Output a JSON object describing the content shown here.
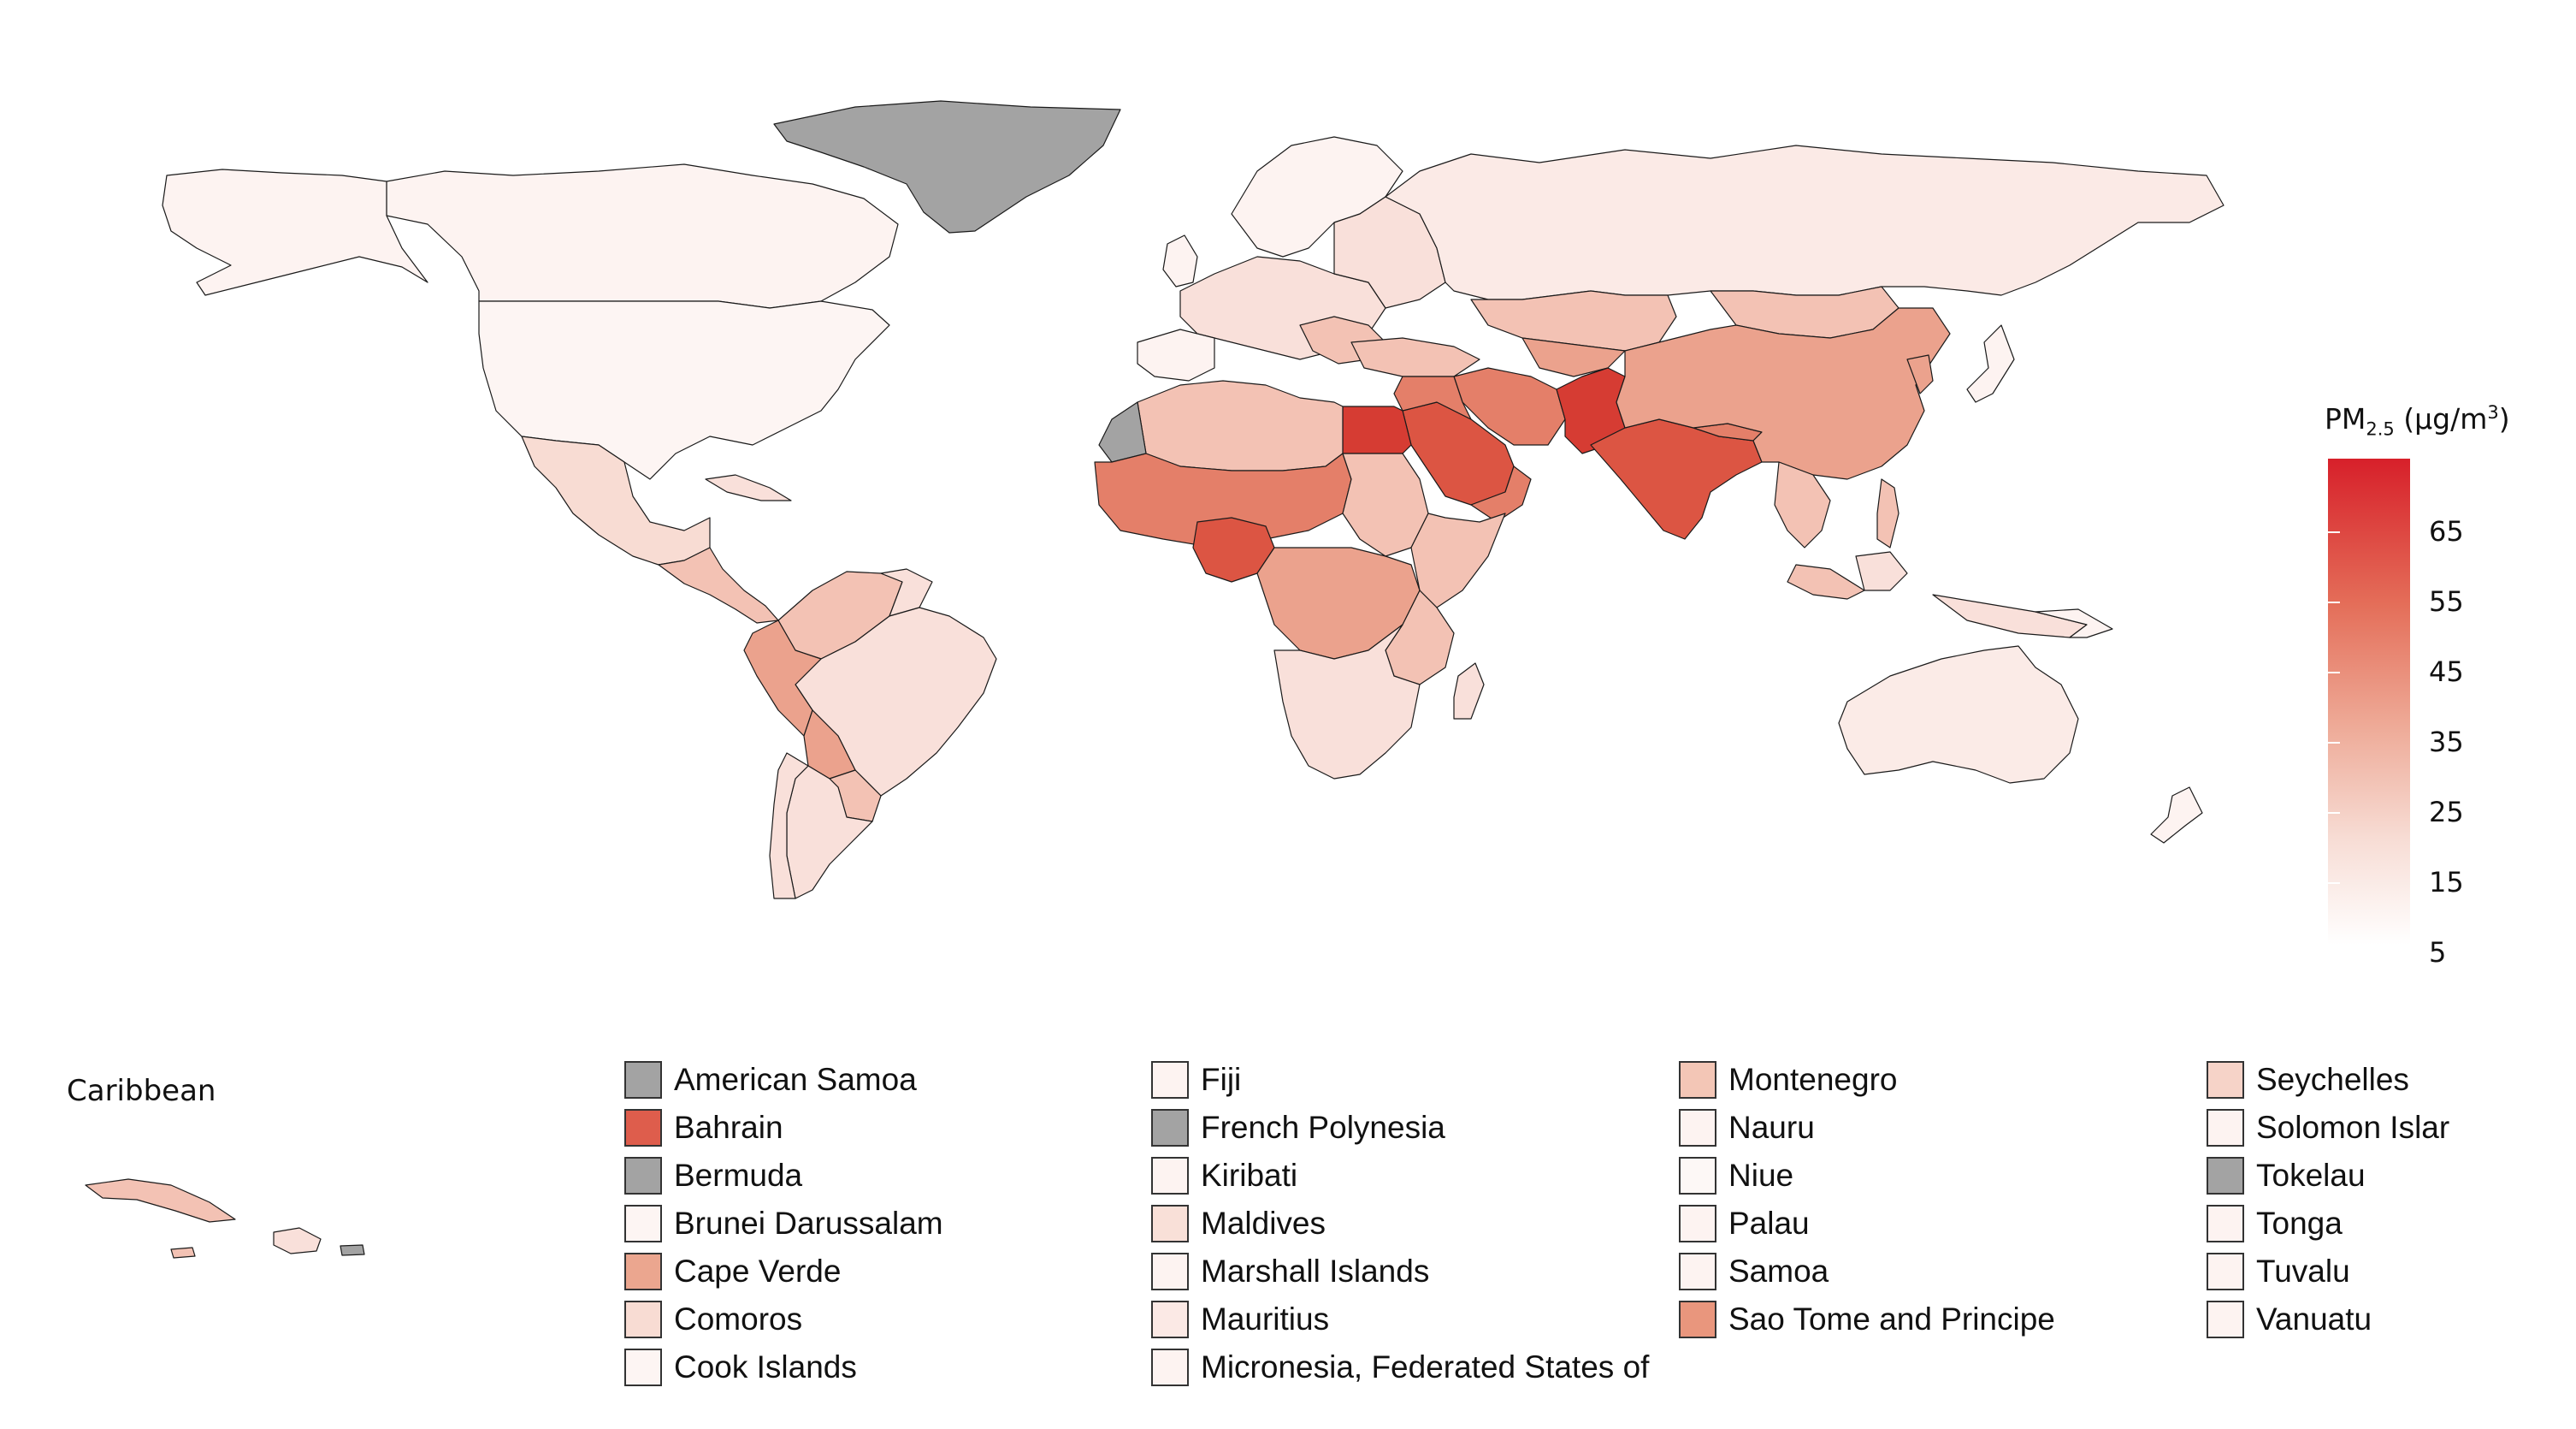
{
  "legend_title": {
    "main": "PM",
    "subscript": "2.5",
    "unit_open": " (µg/m",
    "superscript": "3",
    "unit_close": ")"
  },
  "colorbar": {
    "ticks": [
      "65",
      "55",
      "45",
      "35",
      "25",
      "15",
      "5"
    ],
    "min": 5,
    "max": 72,
    "colors": [
      "#ffffff",
      "#d7202a"
    ]
  },
  "inset_title": "Caribbean",
  "colors": {
    "no_data": "#a3a3a3",
    "lowest": "#fdf3f1",
    "low": "#f9e0da",
    "mid_low": "#f3c2b4",
    "mid": "#eba28d",
    "mid_high": "#e47f69",
    "high": "#dc5543",
    "highest": "#d63c33"
  },
  "small_states": [
    {
      "label": "American Samoa",
      "color": "#a3a3a3"
    },
    {
      "label": "Bahrain",
      "color": "#de5d4c"
    },
    {
      "label": "Bermuda",
      "color": "#a3a3a3"
    },
    {
      "label": "Brunei Darussalam",
      "color": "#fdf5f3"
    },
    {
      "label": "Cape Verde",
      "color": "#eba68f"
    },
    {
      "label": "Comoros",
      "color": "#f8dcd3"
    },
    {
      "label": "Cook Islands",
      "color": "#fdf5f3"
    },
    {
      "label": "Fiji",
      "color": "#fdf3f1"
    },
    {
      "label": "French Polynesia",
      "color": "#a3a3a3"
    },
    {
      "label": "Kiribati",
      "color": "#fdf3f1"
    },
    {
      "label": "Maldives",
      "color": "#f9e0d8"
    },
    {
      "label": "Marshall Islands",
      "color": "#fdf3f1"
    },
    {
      "label": "Mauritius",
      "color": "#fbe9e5"
    },
    {
      "label": "Micronesia, Federated States of",
      "color": "#fdf3f1"
    },
    {
      "label": "Montenegro",
      "color": "#f3c6b6"
    },
    {
      "label": "Nauru",
      "color": "#fdf3f1"
    },
    {
      "label": "Niue",
      "color": "#fdf8f6"
    },
    {
      "label": "Palau",
      "color": "#fdf3f1"
    },
    {
      "label": "Samoa",
      "color": "#fdf3f1"
    },
    {
      "label": "Sao Tome and Principe",
      "color": "#e9967d"
    },
    {
      "label": "Seychelles",
      "color": "#f6d3c8"
    },
    {
      "label": "Solomon Islar",
      "color": "#fdf3f1"
    },
    {
      "label": "Tokelau",
      "color": "#a3a3a3"
    },
    {
      "label": "Tonga",
      "color": "#fdf3f1"
    },
    {
      "label": "Tuvalu",
      "color": "#fdf3f1"
    },
    {
      "label": "Vanuatu",
      "color": "#fdf3f1"
    }
  ]
}
